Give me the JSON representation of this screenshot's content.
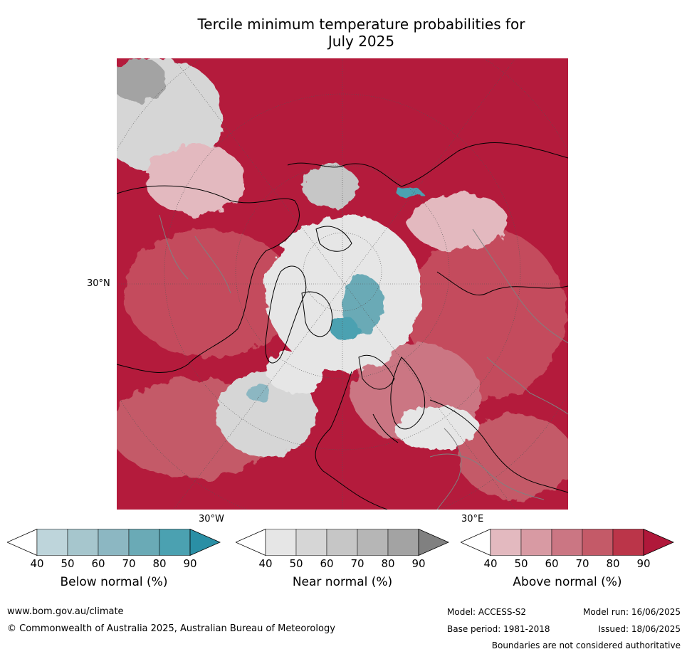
{
  "title_line1": "Tercile minimum temperature probabilities for",
  "title_line2": "July 2025",
  "graticule_labels": {
    "lat_30n": "30°N",
    "lon_30w": "30°W",
    "lon_30e": "30°E"
  },
  "colorbars": [
    {
      "label": "Below normal (%)",
      "ticks": [
        "40",
        "50",
        "60",
        "70",
        "80",
        "90"
      ],
      "colors": [
        "#ffffff",
        "#bed5db",
        "#a6c6cd",
        "#8cb7c2",
        "#6aaab6",
        "#4ba1b1",
        "#2a8fa5"
      ]
    },
    {
      "label": "Near normal (%)",
      "ticks": [
        "40",
        "50",
        "60",
        "70",
        "80",
        "90"
      ],
      "colors": [
        "#ffffff",
        "#e6e6e6",
        "#d6d6d6",
        "#c6c6c6",
        "#b6b6b6",
        "#a3a3a3",
        "#808080"
      ]
    },
    {
      "label": "Above normal (%)",
      "ticks": [
        "40",
        "50",
        "60",
        "70",
        "80",
        "90"
      ],
      "colors": [
        "#ffffff",
        "#e3b9bf",
        "#d89aa3",
        "#cb7683",
        "#c45a68",
        "#bb3549",
        "#b0183a"
      ]
    }
  ],
  "map_colors": {
    "above_90": "#b41b3c",
    "above_70": "#c44c5d",
    "above_50": "#d8919b",
    "near": "#d9d9d9",
    "below": "#5aa7b6",
    "coast": "#000000",
    "borders": "#808080"
  },
  "footer": {
    "url": "www.bom.gov.au/climate",
    "copyright": "© Commonwealth of Australia 2025, Australian Bureau of Meteorology",
    "model": "Model: ACCESS-S2",
    "base_period": "Base period: 1981-2018",
    "model_run": "Model run: 16/06/2025",
    "issued": "Issued: 18/06/2025",
    "disclaimer": "Boundaries are not considered authoritative"
  }
}
